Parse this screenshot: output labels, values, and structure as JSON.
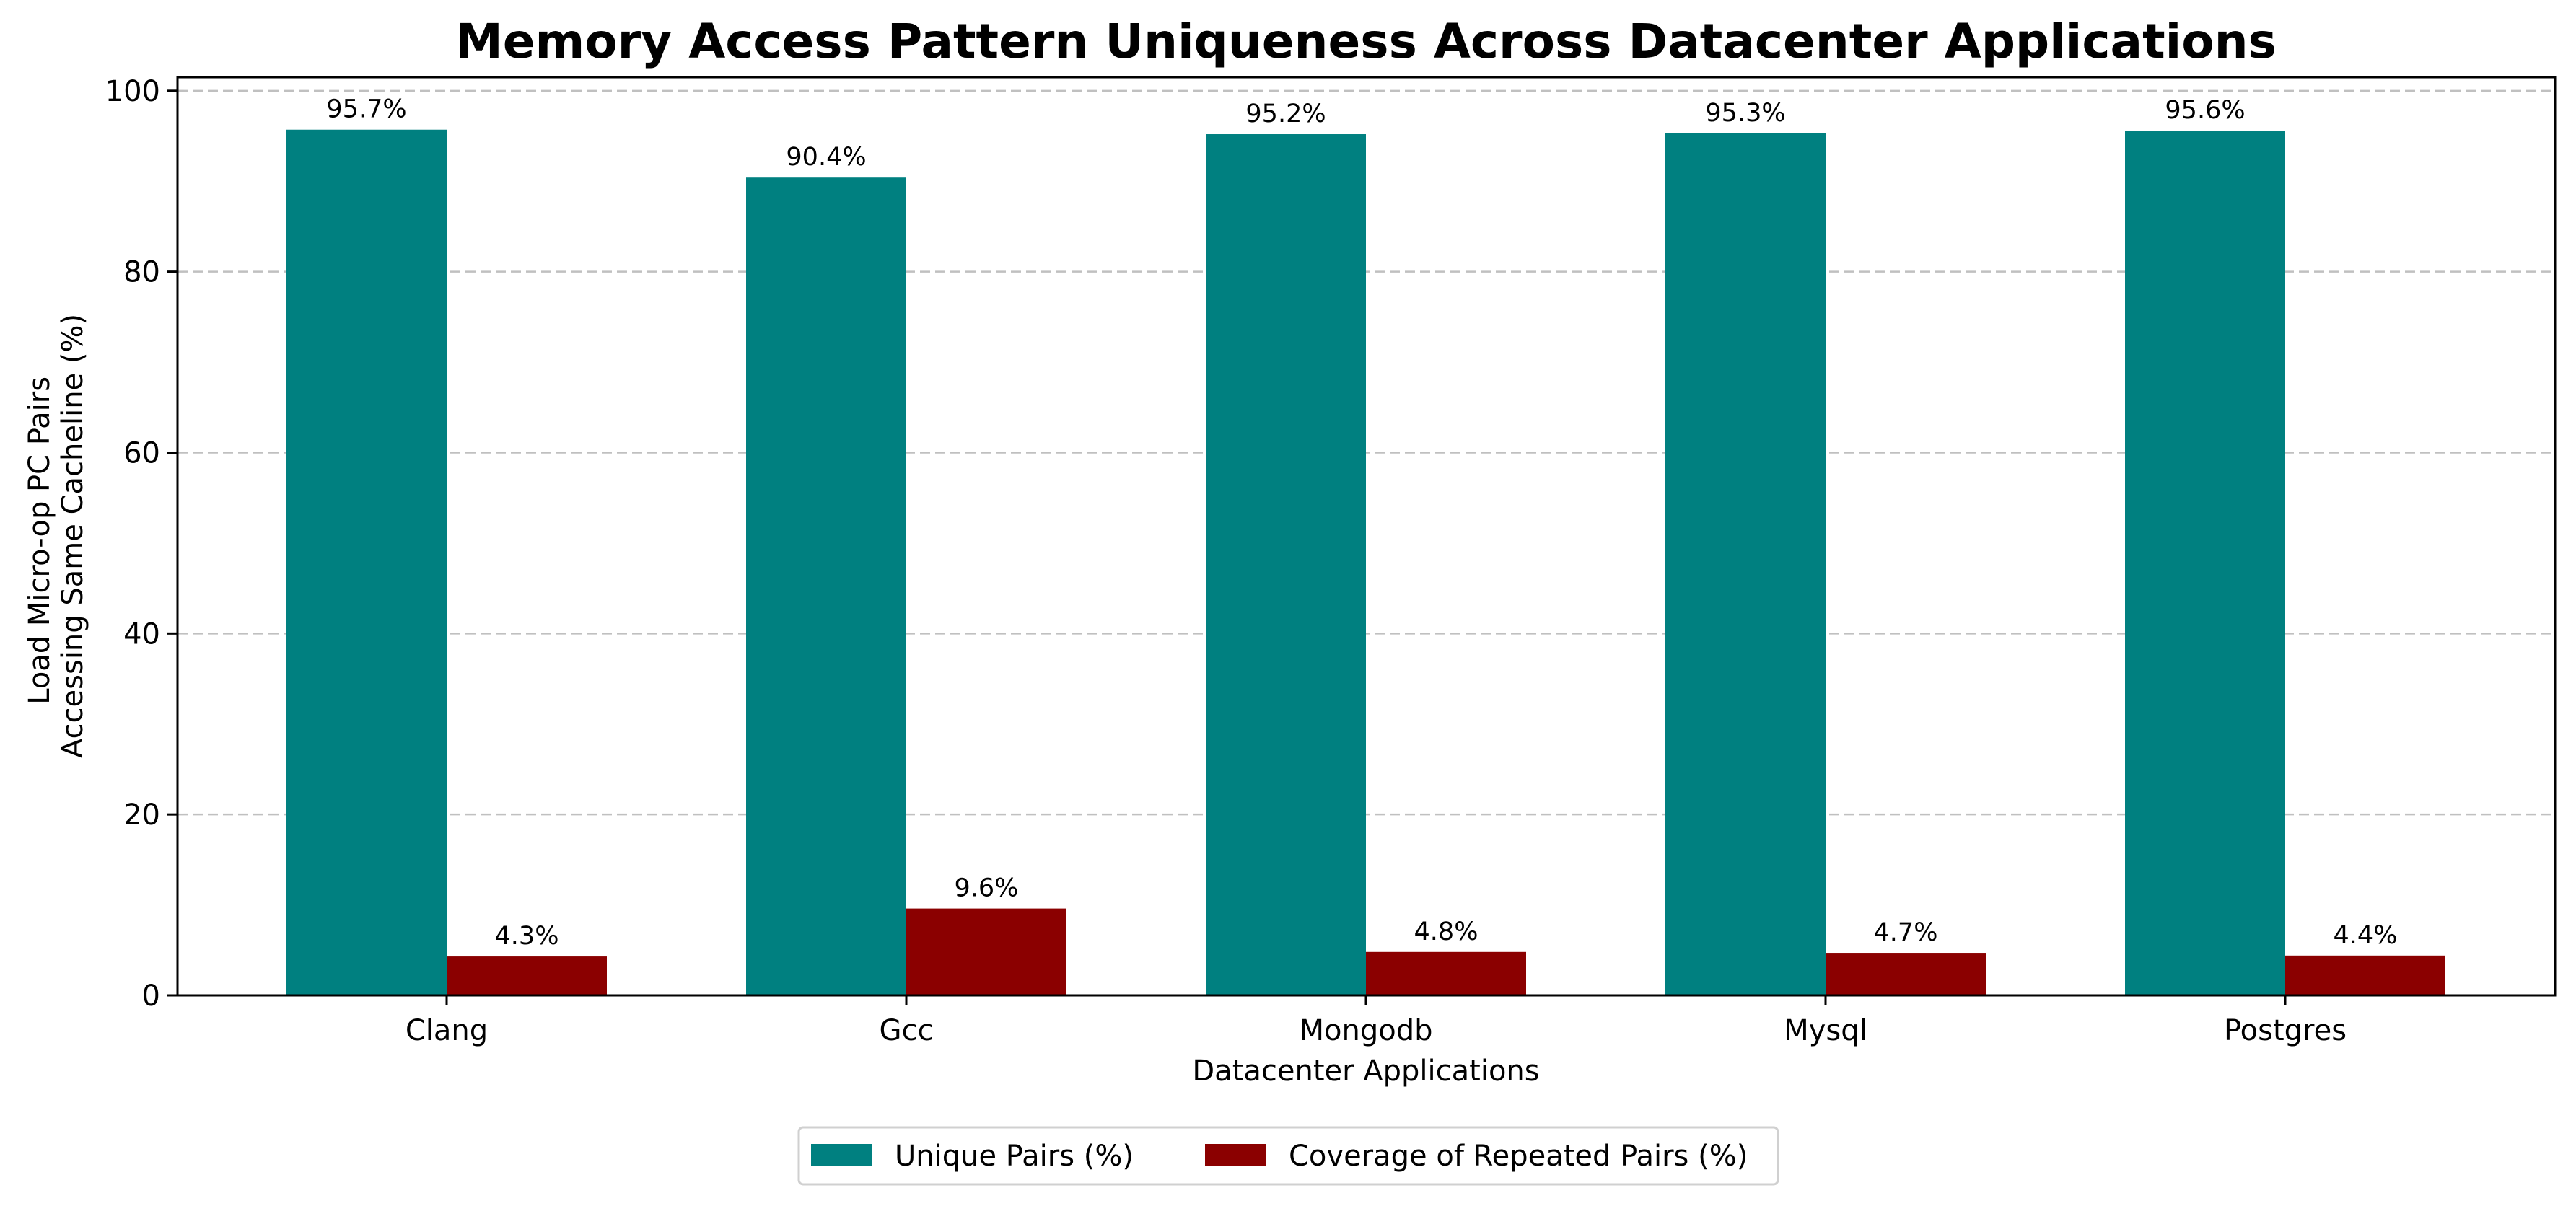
{
  "chart_data": {
    "type": "bar",
    "title": "Memory Access Pattern Uniqueness Across Datacenter Applications",
    "xlabel": "Datacenter Applications",
    "ylabel": [
      "Load Micro-op PC Pairs",
      "Accessing Same Cacheline (%)"
    ],
    "categories": [
      "Clang",
      "Gcc",
      "Mongodb",
      "Mysql",
      "Postgres"
    ],
    "series": [
      {
        "name": "Unique Pairs (%)",
        "color": "#008080",
        "values": [
          95.7,
          90.4,
          95.2,
          95.3,
          95.6
        ],
        "labels": [
          "95.7%",
          "90.4%",
          "95.2%",
          "95.3%",
          "95.6%"
        ]
      },
      {
        "name": "Coverage of Repeated Pairs (%)",
        "color": "#8b0000",
        "values": [
          4.3,
          9.6,
          4.8,
          4.7,
          4.4
        ],
        "labels": [
          "4.3%",
          "9.6%",
          "4.8%",
          "4.7%",
          "4.4%"
        ]
      }
    ],
    "ylim": [
      0,
      100
    ],
    "yticks": [
      0,
      20,
      40,
      60,
      80,
      100
    ],
    "ytick_labels": [
      "0",
      "20",
      "40",
      "60",
      "80",
      "100"
    ],
    "grid": "y-dashed",
    "legend_position": "bottom-center"
  }
}
